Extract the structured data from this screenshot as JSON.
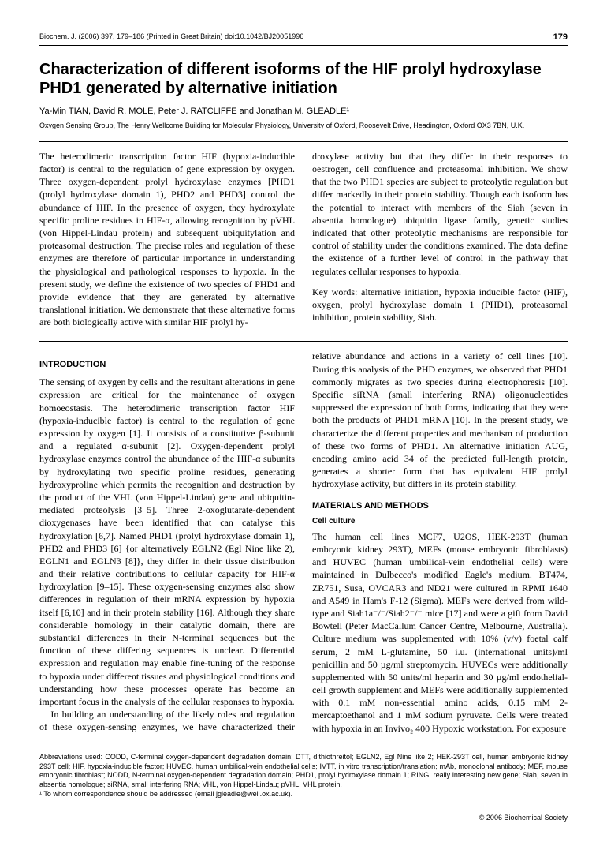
{
  "header": {
    "citation": "Biochem. J. (2006) 397, 179–186 (Printed in Great Britain)   doi:10.1042/BJ20051996",
    "page_number": "179"
  },
  "title": "Characterization of different isoforms of the HIF prolyl hydroxylase PHD1 generated by alternative initiation",
  "authors": "Ya-Min TIAN, David R. MOLE, Peter J. RATCLIFFE and Jonathan M. GLEADLE¹",
  "affiliation": "Oxygen Sensing Group, The Henry Wellcome Building for Molecular Physiology, University of Oxford, Roosevelt Drive, Headington, Oxford OX3 7BN, U.K.",
  "abstract": {
    "left": "The heterodimeric transcription factor HIF (hypoxia-inducible factor) is central to the regulation of gene expression by oxygen. Three oxygen-dependent prolyl hydroxylase enzymes [PHD1 (prolyl hydroxylase domain 1), PHD2 and PHD3] control the abundance of HIF. In the presence of oxygen, they hydroxylate specific proline residues in HIF-α, allowing recognition by pVHL (von Hippel-Lindau protein) and subsequent ubiquitylation and proteasomal destruction. The precise roles and regulation of these enzymes are therefore of particular importance in understanding the physiological and pathological responses to hypoxia. In the present study, we define the existence of two species of PHD1 and provide evidence that they are generated by alternative translational initiation. We demonstrate that these alternative forms are both biologically active with similar HIF prolyl hy-",
    "right": "droxylase activity but that they differ in their responses to oestrogen, cell confluence and proteasomal inhibition. We show that the two PHD1 species are subject to proteolytic regulation but differ markedly in their protein stability. Though each isoform has the potential to interact with members of the Siah (seven in absentia homologue) ubiquitin ligase family, genetic studies indicated that other proteolytic mechanisms are responsible for control of stability under the conditions examined. The data define the existence of a further level of control in the pathway that regulates cellular responses to hypoxia.",
    "keywords": "Key words: alternative initiation, hypoxia inducible factor (HIF), oxygen, prolyl hydroxylase domain 1 (PHD1), proteasomal inhibition, protein stability, Siah."
  },
  "sections": {
    "intro_heading": "INTRODUCTION",
    "intro_p1": "The sensing of oxygen by cells and the resultant alterations in gene expression are critical for the maintenance of oxygen homoeostasis. The heterodimeric transcription factor HIF (hypoxia-inducible factor) is central to the regulation of gene expression by oxygen [1]. It consists of a constitutive β-subunit and a regulated α-subunit [2]. Oxygen-dependent prolyl hydroxylase enzymes control the abundance of the HIF-α subunits by hydroxylating two specific proline residues, generating hydroxyproline which permits the recognition and destruction by the product of the VHL (von Hippel-Lindau) gene and ubiquitin-mediated proteolysis [3–5]. Three 2-oxoglutarate-dependent dioxygenases have been identified that can catalyse this hydroxylation [6,7]. Named PHD1 (prolyl hydroxylase domain 1), PHD2 and PHD3 [6] {or alternatively EGLN2 (Egl Nine like 2), EGLN1 and EGLN3 [8]}, they differ in their tissue distribution and their relative contributions to cellular capacity for HIF-α hydroxylation [9–15]. These oxygen-sensing enzymes also show differences in regulation of their mRNA expression by hypoxia itself [6,10] and in their protein stability [16]. Although they share considerable homology in their catalytic domain, there are substantial differences in their N-terminal sequences but the function of these differing sequences is unclear. Differential expression and regulation may enable fine-tuning of the response to hypoxia under different tissues and physiological conditions and understanding how these processes operate has become an important focus in the analysis of the cellular responses to hypoxia.",
    "intro_p2": "In building an understanding of the likely roles and regulation of these oxygen-sensing enzymes, we have characterized their relative abundance and actions in a variety of cell lines [10]. During this analysis of the PHD enzymes, we observed that PHD1 commonly migrates as two species during electrophoresis [10]. Specific siRNA (small interfering RNA) oligonucleotides suppressed the expression of both forms, indicating that they were both the products of PHD1 mRNA [10]. In the present study, we characterize the different properties and mechanism of production of these two forms of PHD1. An alternative initiation AUG, encoding amino acid 34 of the predicted full-length protein, generates a shorter form that has equivalent HIF prolyl hydroxylase activity, but differs in its protein stability.",
    "mm_heading": "MATERIALS AND METHODS",
    "cc_heading": "Cell culture",
    "cc_p1": "The human cell lines MCF7, U2OS, HEK-293T (human embryonic kidney 293T), MEFs (mouse embryonic fibroblasts) and HUVEC (human umbilical-vein endothelial cells) were maintained in Dulbecco's modified Eagle's medium. BT474, ZR751, Susa, OVCAR3 and ND21 were cultured in RPMI 1640 and A549 in Ham's F-12 (Sigma). MEFs were derived from wild-type and Siah1a⁻/⁻/Siah2⁻/⁻ mice [17] and were a gift from David Bowtell (Peter MacCallum Cancer Centre, Melbourne, Australia). Culture medium was supplemented with 10% (v/v) foetal calf serum, 2 mM L-glutamine, 50 i.u. (international units)/ml penicillin and 50 µg/ml streptomycin. HUVECs were additionally supplemented with 50 units/ml heparin and 30 µg/ml endothelial-cell growth supplement and MEFs were additionally supplemented with 0.1 mM non-essential amino acids, 0.15 mM 2-mercaptoethanol and 1 mM sodium pyruvate. Cells were treated with hypoxia in an Invivo₂ 400 Hypoxic workstation. For exposure"
  },
  "footnotes": {
    "abbrev": "Abbreviations used: CODD, C-terminal oxygen-dependent degradation domain; DTT, dithiothreitol; EGLN2, Egl Nine like 2; HEK-293T cell, human embryonic kidney 293T cell; HIF, hypoxia-inducible factor; HUVEC, human umbilical-vein endothelial cells; IVTT, in vitro transcription/translation; mAb, monoclonal antibody; MEF, mouse embryonic fibroblast; NODD, N-terminal oxygen-dependent degradation domain; PHD1, prolyl hydroxylase domain 1; RING, really interesting new gene; Siah, seven in absentia homologue; siRNA, small interfering RNA; VHL, von Hippel-Lindau; pVHL, VHL protein.",
    "corr": "¹ To whom correspondence should be addressed (email jgleadle@well.ox.ac.uk)."
  },
  "footer": "© 2006 Biochemical Society"
}
